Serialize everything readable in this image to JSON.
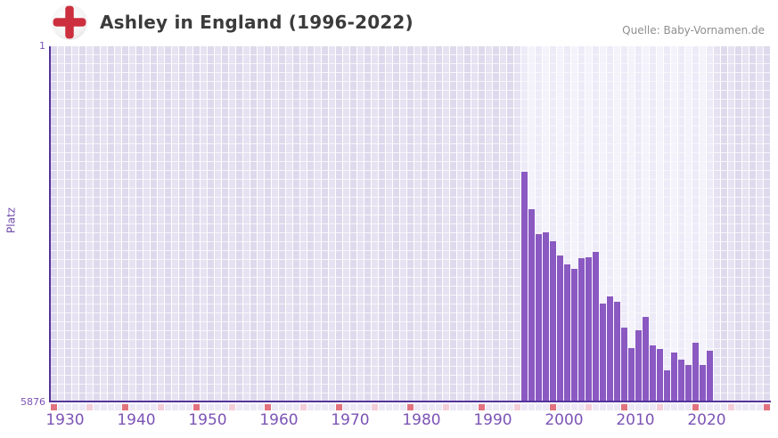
{
  "header": {
    "title": "Ashley in England (1996-2022)",
    "source": "Quelle: Baby-Vornamen.de",
    "flag_icon": "england-flag-icon"
  },
  "chart_data": {
    "type": "bar",
    "title": "Ashley in England (1996-2022)",
    "ylabel": "Platz",
    "y_axis": {
      "top_label": "1",
      "bottom_label": "5876",
      "min": 1,
      "max": 5876,
      "inverted": true,
      "note": "rank 1 at top, rank 5876 at baseline"
    },
    "x_axis": {
      "range_start_year": 1930,
      "range_end_year": 2030,
      "decade_labels": [
        "1930",
        "1940",
        "1950",
        "1960",
        "1970",
        "1980",
        "1990",
        "2000",
        "2010",
        "2020"
      ]
    },
    "highlight_year_range": [
      1996,
      2022
    ],
    "years": [
      1996,
      1997,
      1998,
      1999,
      2000,
      2001,
      2002,
      2003,
      2004,
      2005,
      2006,
      2007,
      2008,
      2009,
      2010,
      2011,
      2012,
      2013,
      2014,
      2015,
      2016,
      2017,
      2018,
      2019,
      2020,
      2021,
      2022
    ],
    "values": [
      2075,
      2695,
      3095,
      3065,
      3210,
      3445,
      3600,
      3670,
      3500,
      3480,
      3400,
      4250,
      4135,
      4215,
      4635,
      4975,
      4690,
      4470,
      4935,
      5000,
      5350,
      5060,
      5170,
      5265,
      4885,
      5255,
      5020
    ],
    "legend": "none",
    "grid": "on",
    "colors": {
      "bar": "#8a59c2",
      "axis": "#54349c",
      "grid_cell_even": "#ded9ec",
      "grid_cell_odd": "#e6e2f2",
      "grid_highlight_even": "#eeebf8",
      "grid_highlight_odd": "#f4f2fb",
      "grid_gap": "#f7f6fa",
      "tick_decade": "#e2727e",
      "tick_half_decade": "#f3cdd8",
      "tick_plain": "#ece8f5",
      "label_purple": "#7c54b6",
      "title_text": "#3b3b3b",
      "source_text": "#8f8f8f",
      "flag_red": "#cc2f3e"
    }
  }
}
